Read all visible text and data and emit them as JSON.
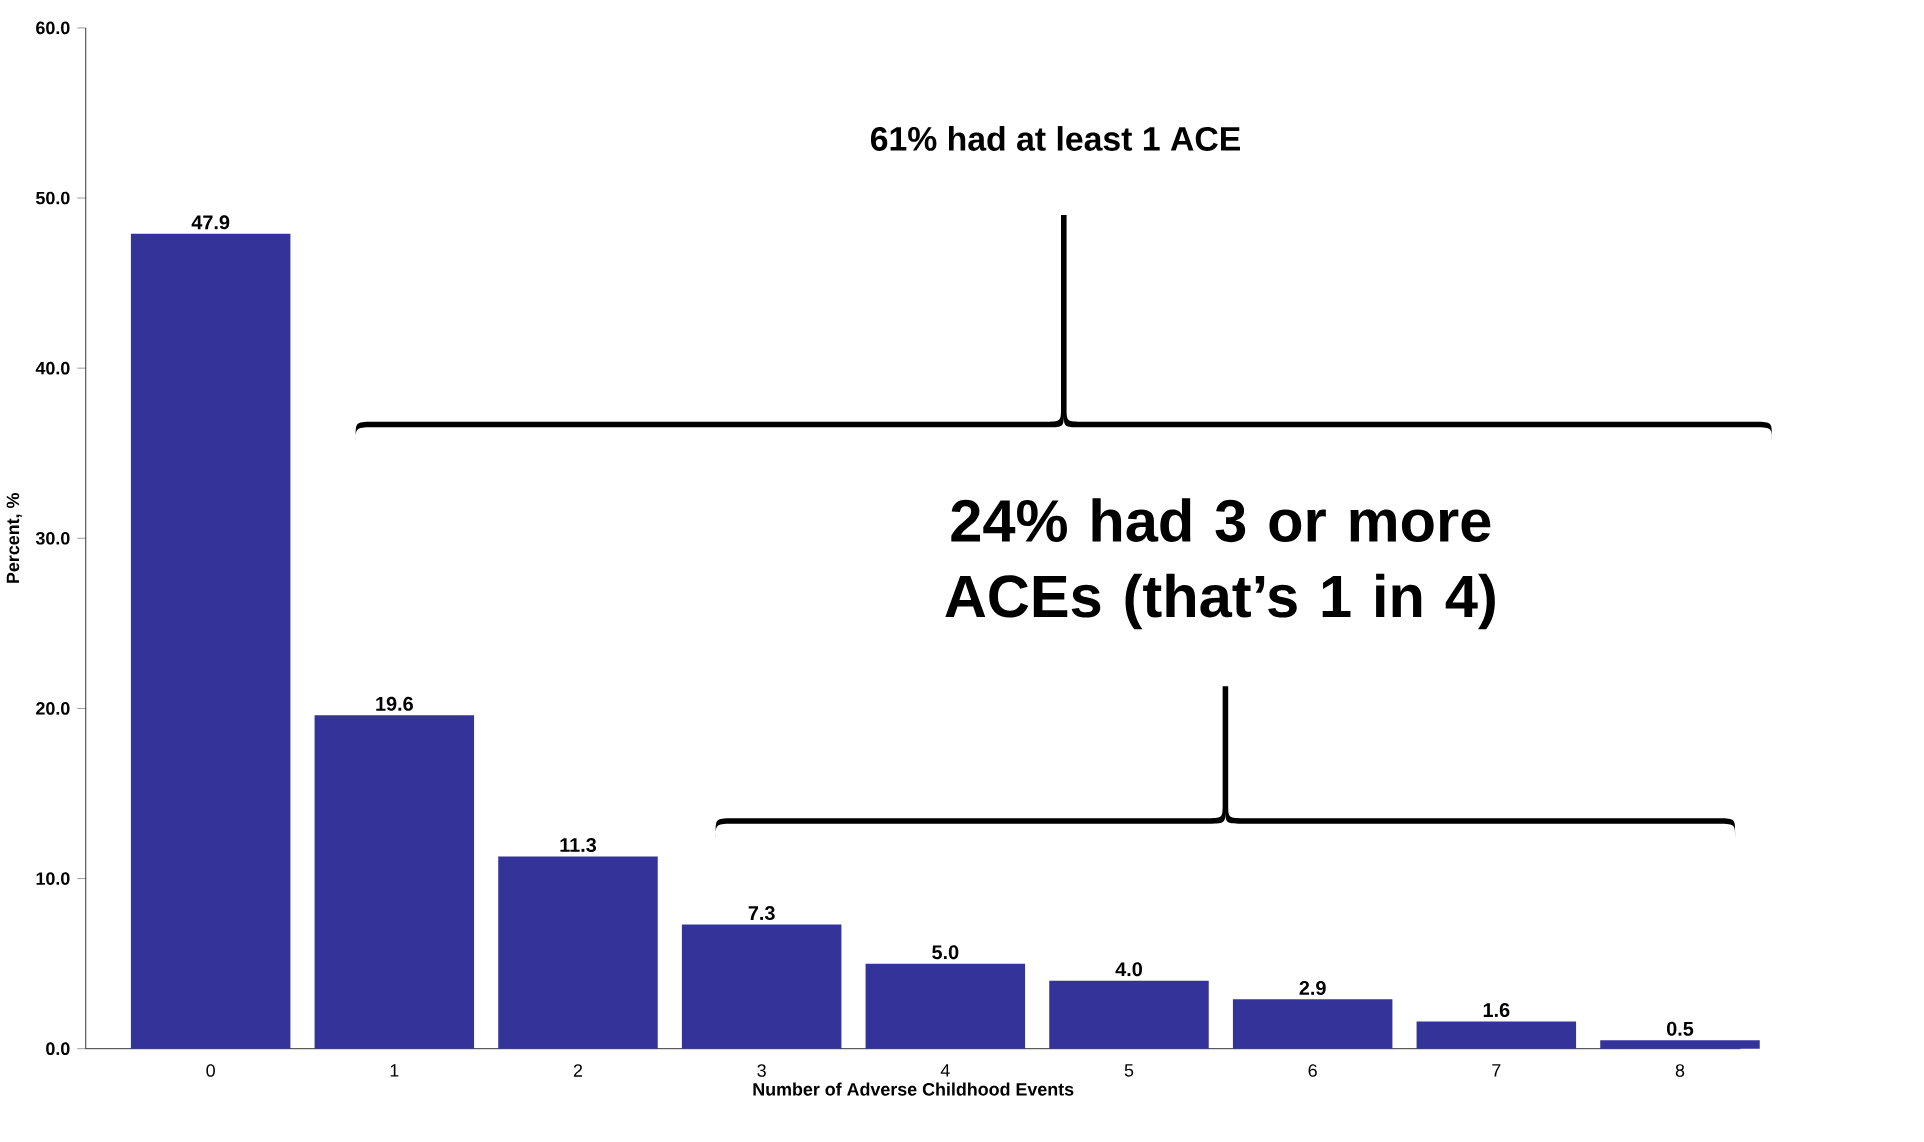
{
  "chart_data": {
    "type": "bar",
    "categories": [
      "0",
      "1",
      "2",
      "3",
      "4",
      "5",
      "6",
      "7",
      "8"
    ],
    "values": [
      47.9,
      19.6,
      11.3,
      7.3,
      5.0,
      4.0,
      2.9,
      1.6,
      0.5
    ],
    "color": "#333399",
    "xlabel": "Number of Adverse Childhood Events",
    "ylabel": "Percent, %",
    "ylim": [
      0,
      60
    ],
    "yticks": [
      {
        "value": 0,
        "label": "0.0"
      },
      {
        "value": 10,
        "label": "10.0"
      },
      {
        "value": 20,
        "label": "20.0"
      },
      {
        "value": 30,
        "label": "30.0"
      },
      {
        "value": 40,
        "label": "40.0"
      },
      {
        "value": 50,
        "label": "50.0"
      },
      {
        "value": 60,
        "label": "60.0"
      }
    ],
    "value_labels": [
      "47.9",
      "19.6",
      "11.3",
      "7.3",
      "5.0",
      "4.0",
      "2.9",
      "1.6",
      "0.5"
    ],
    "annotations": [
      "61% had at least 1 ACE",
      "24% had 3 or more ACEs (that’s 1 in 4)"
    ]
  }
}
